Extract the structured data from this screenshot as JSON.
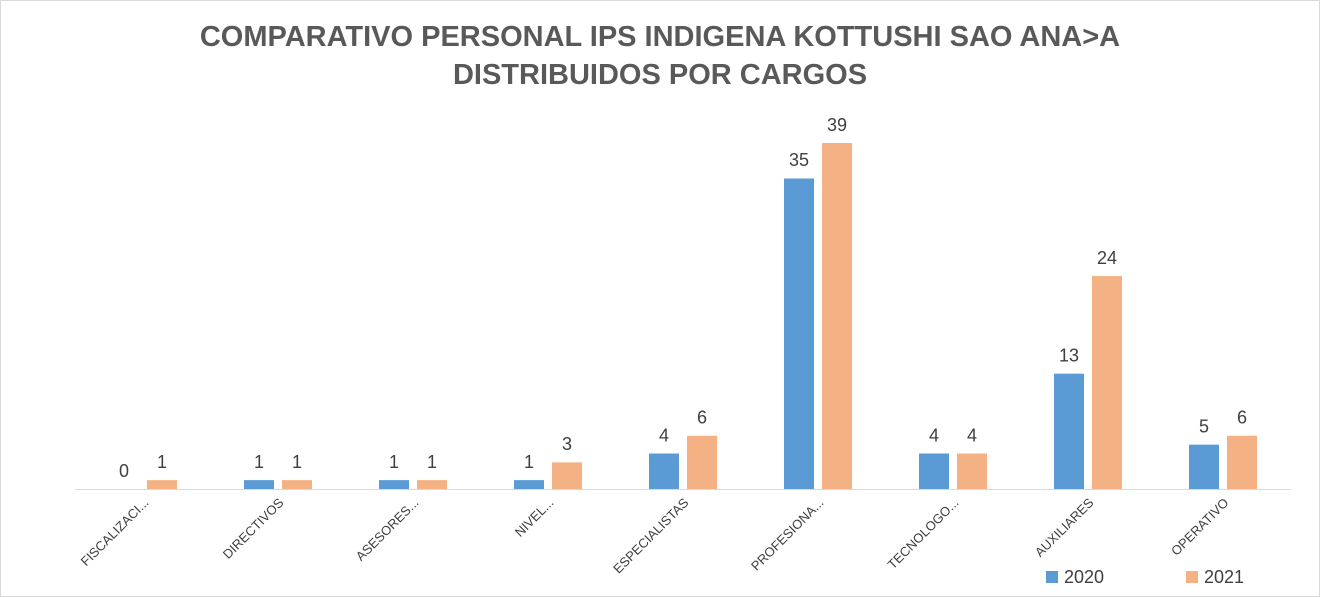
{
  "chart_data": {
    "type": "bar",
    "title": "COMPARATIVO PERSONAL IPS INDIGENA KOTTUSHI SAO ANA>A DISTRIBUIDOS POR CARGOS",
    "categories": [
      "FISCALIZACI...",
      "DIRECTIVOS",
      "ASESORES...",
      "NIVEL...",
      "ESPECIALISTAS",
      "PROFESIONA...",
      "TECNOLOGO...",
      "AUXILIARES",
      "OPERATIVO"
    ],
    "series": [
      {
        "name": "2020",
        "color": "#5b9bd5",
        "values": [
          0,
          1,
          1,
          1,
          4,
          35,
          4,
          13,
          5
        ]
      },
      {
        "name": "2021",
        "color": "#f4b183",
        "values": [
          1,
          1,
          1,
          3,
          6,
          39,
          4,
          24,
          6
        ]
      }
    ],
    "legend": "bottom-right"
  }
}
